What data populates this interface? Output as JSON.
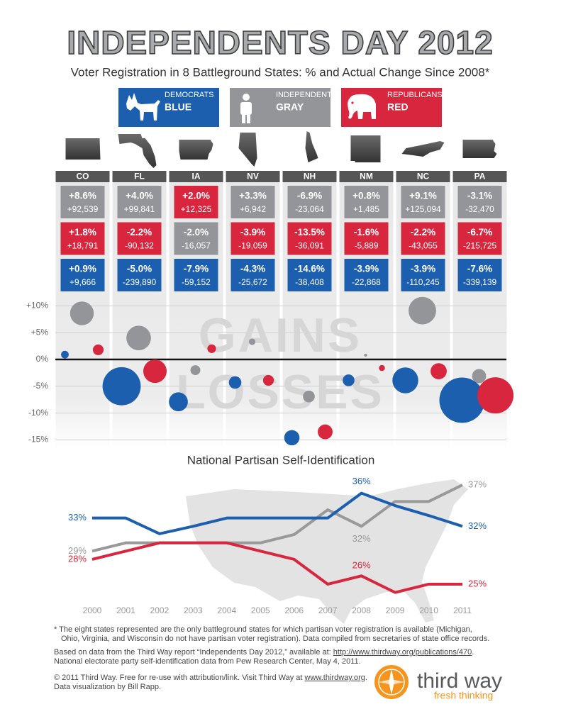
{
  "header": {
    "title": "INDEPENDENTS DAY 2012",
    "subtitle": "Voter Registration in 8 Battleground States: % and Actual Change Since 2008*"
  },
  "chart_data": [
    {
      "type": "bubble",
      "categories": [
        "CO",
        "FL",
        "IA",
        "NV",
        "NH",
        "NM",
        "NC",
        "PA"
      ],
      "series": [
        {
          "name": "DEMOCRATS",
          "color_name": "BLUE",
          "color": "#1c5fae",
          "values": [
            0.9,
            -5.0,
            -7.9,
            -4.3,
            -14.6,
            -3.9,
            -3.9,
            -7.6
          ],
          "value_labels": [
            "+0.9%",
            "-5.0%",
            "-7.9%",
            "-4.3%",
            "-14.6%",
            "-3.9%",
            "-3.9%",
            "-7.6%"
          ],
          "sizes": [
            9666,
            -239890,
            -59152,
            -25672,
            -38408,
            -22868,
            -110245,
            -339139
          ],
          "size_labels": [
            "+9,666",
            "-239,890",
            "-59,152",
            "-25,672",
            "-38,408",
            "-22,868",
            "-110,245",
            "-339,139"
          ]
        },
        {
          "name": "INDEPENDENTS",
          "color_name": "GRAY",
          "color": "#939598",
          "values": [
            8.6,
            4.0,
            -2.0,
            3.3,
            -6.9,
            0.8,
            9.1,
            -3.1
          ],
          "value_labels": [
            "+8.6%",
            "+4.0%",
            "-2.0%",
            "+3.3%",
            "-6.9%",
            "+0.8%",
            "+9.1%",
            "-3.1%"
          ],
          "sizes": [
            92539,
            99841,
            -16057,
            6942,
            -23064,
            1485,
            125094,
            -32470
          ],
          "size_labels": [
            "+92,539",
            "+99,841",
            "-16,057",
            "+6,942",
            "-23,064",
            "+1,485",
            "+125,094",
            "-32,470"
          ]
        },
        {
          "name": "REPUBLICANS",
          "color_name": "RED",
          "color": "#d7263d",
          "values": [
            1.8,
            -2.2,
            2.0,
            -3.9,
            -13.5,
            -1.6,
            -2.2,
            -6.7
          ],
          "value_labels": [
            "+1.8%",
            "-2.2%",
            "+2.0%",
            "-3.9%",
            "-13.5%",
            "-1.6%",
            "-2.2%",
            "-6.7%"
          ],
          "sizes": [
            18791,
            -90132,
            12325,
            -19059,
            -36091,
            -5889,
            -43055,
            -215725
          ],
          "size_labels": [
            "+18,791",
            "-90,132",
            "+12,325",
            "-19,059",
            "-36,091",
            "-5,889",
            "-43,055",
            "-215,725"
          ]
        }
      ],
      "ylim": [
        -16,
        11.5
      ],
      "yticks": [
        {
          "value": 10,
          "label": "+10%"
        },
        {
          "value": 5,
          "label": "+5%"
        },
        {
          "value": 0,
          "label": "0%"
        },
        {
          "value": -5,
          "label": "-5%"
        },
        {
          "value": -10,
          "label": "-10%"
        },
        {
          "value": -15,
          "label": "-15%"
        }
      ],
      "grid": true,
      "annotations": [
        "GAINS",
        "LOSSES"
      ]
    },
    {
      "type": "line",
      "title": "National Partisan Self-Identification",
      "x": [
        2000,
        2001,
        2002,
        2003,
        2004,
        2005,
        2006,
        2007,
        2008,
        2009,
        2010,
        2011
      ],
      "xlim": [
        2000,
        2011
      ],
      "xticks": [
        2000,
        2001,
        2002,
        2003,
        2004,
        2005,
        2006,
        2007,
        2008,
        2009,
        2010,
        2011
      ],
      "ylim": [
        23,
        38.5
      ],
      "series": [
        {
          "name": "Independents",
          "color": "#999999",
          "values": [
            29,
            30,
            30,
            30,
            30,
            30,
            31,
            34,
            32,
            35,
            35,
            37
          ],
          "value_labels": [
            "29%",
            null,
            null,
            null,
            null,
            null,
            null,
            null,
            "32%",
            null,
            null,
            "37%"
          ]
        },
        {
          "name": "Democrats",
          "color": "#1c5fae",
          "values": [
            33,
            33,
            31.1,
            32,
            33,
            33,
            33,
            33,
            36,
            34.5,
            33.3,
            32
          ],
          "value_labels": [
            "33%",
            null,
            null,
            null,
            null,
            null,
            null,
            null,
            "36%",
            null,
            null,
            "32%"
          ]
        },
        {
          "name": "Republicans",
          "color": "#d7263d",
          "values": [
            28,
            29,
            30,
            30,
            30,
            29,
            28,
            25,
            26,
            24,
            25,
            25
          ],
          "value_labels": [
            "28%",
            null,
            null,
            null,
            null,
            null,
            null,
            null,
            "26%",
            null,
            null,
            "25%"
          ]
        }
      ]
    }
  ],
  "footnotes": {
    "note": [
      "* The eight states represented are the only battleground states for which partisan voter registration is available (Michigan,",
      "Ohio, Virginia, and Wisconsin do not have partisan voter registration). Data compiled from secretaries of state office records."
    ],
    "source": {
      "text": "Based on data from the Third Way report “Independents Day 2012,” available at: ",
      "link": "http://www.thirdway.org/publications/470",
      "end": ".",
      "line2": "National electorate party self-identification data from Pew Research Center, May 4, 2011."
    },
    "copyright": {
      "text": "© 2011 Third Way. Free for re-use with attribution/link. Visit Third Way at ",
      "link": "www.thirdway.org",
      "end": ".",
      "line2": "Data visualization by Bill Rapp."
    }
  },
  "logo": {
    "name": "third way",
    "tagline": "fresh thinking"
  }
}
